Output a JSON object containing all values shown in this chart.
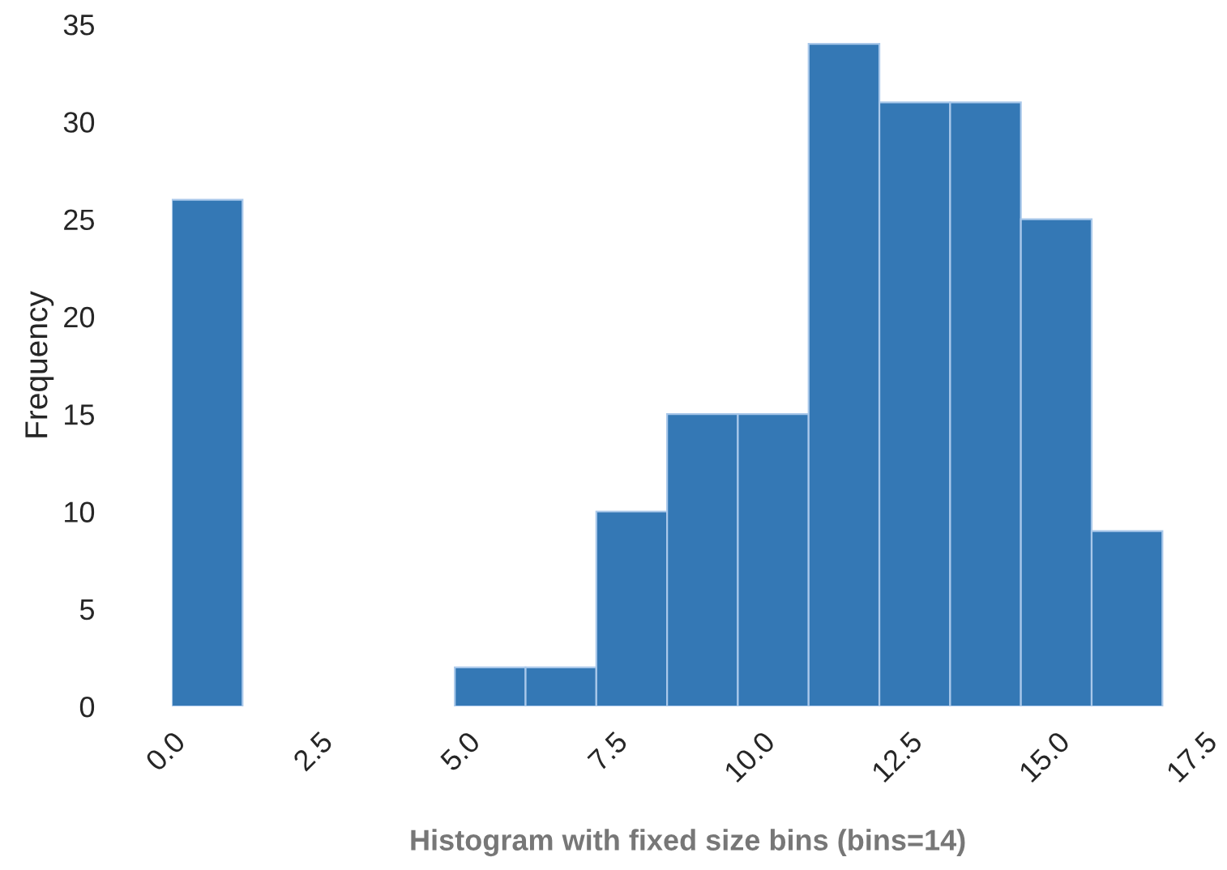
{
  "chart_data": {
    "type": "histogram",
    "xlabel": "Histogram with fixed size bins (bins=14)",
    "ylabel": "Frequency",
    "bins": [
      0,
      1.2,
      2.4,
      3.6,
      4.8,
      6.0,
      7.2,
      8.4,
      9.6,
      10.8,
      12.0,
      13.2,
      14.4,
      15.6,
      16.8
    ],
    "values": [
      26,
      0,
      0,
      0,
      2,
      2,
      10,
      15,
      15,
      34,
      31,
      31,
      25,
      9
    ],
    "color": "#3478b5",
    "xlim": [
      0,
      17.5
    ],
    "ylim": [
      0,
      35
    ],
    "xticks": [
      {
        "value": 0,
        "label": "0.0"
      },
      {
        "value": 2.5,
        "label": "2.5"
      },
      {
        "value": 5,
        "label": "5.0"
      },
      {
        "value": 7.5,
        "label": "7.5"
      },
      {
        "value": 10,
        "label": "10.0"
      },
      {
        "value": 12.5,
        "label": "12.5"
      },
      {
        "value": 15,
        "label": "15.0"
      },
      {
        "value": 17.5,
        "label": "17.5"
      }
    ],
    "yticks": [
      0,
      5,
      10,
      15,
      20,
      25,
      30,
      35
    ],
    "grid": false
  }
}
